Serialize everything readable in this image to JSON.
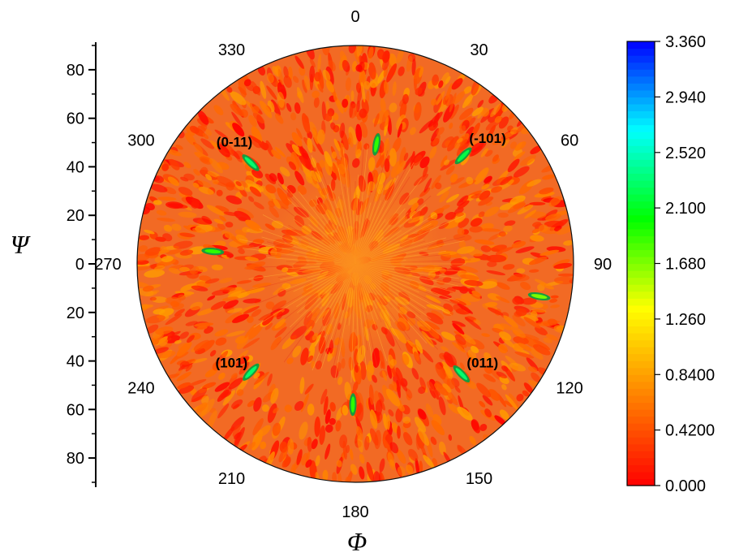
{
  "chart_data": {
    "type": "heatmap",
    "subtype": "polar pole figure",
    "title": "",
    "angular_axis": {
      "label": "Φ",
      "ticks": [
        0,
        30,
        60,
        90,
        120,
        150,
        180,
        210,
        240,
        270,
        300,
        330
      ],
      "tick_labels": [
        "0",
        "30",
        "60",
        "90",
        "120",
        "150",
        "180",
        "210",
        "240",
        "270",
        "300",
        "330"
      ],
      "direction": "clockwise",
      "zero_at": "top"
    },
    "radial_axis": {
      "label": "Ψ",
      "range": [
        0,
        90
      ],
      "tick_labels": [
        "80",
        "60",
        "40",
        "20",
        "0",
        "20",
        "40",
        "60",
        "80"
      ],
      "tick_values": [
        80,
        60,
        40,
        20,
        0,
        20,
        40,
        60,
        80
      ],
      "minor_ticks": true
    },
    "colorbar": {
      "range": [
        0,
        3.36
      ],
      "tick_labels": [
        "3.360",
        "2.940",
        "2.520",
        "2.100",
        "1.680",
        "1.260",
        "0.8400",
        "0.4200",
        "0.000"
      ],
      "tick_values": [
        3.36,
        2.94,
        2.52,
        2.1,
        1.68,
        1.26,
        0.84,
        0.42,
        0.0
      ],
      "colormap": [
        "#ff0000",
        "#ff8000",
        "#ffff00",
        "#00ff00",
        "#00ffff",
        "#0000ff"
      ]
    },
    "background": {
      "typical_intensity_range": [
        0.0,
        0.84
      ]
    },
    "peaks": [
      {
        "phi": 10,
        "psi": 50,
        "intensity": 1.9,
        "label": ""
      },
      {
        "phi": 45,
        "psi": 63,
        "intensity": 2.2,
        "label": "(-101)"
      },
      {
        "phi": 100,
        "psi": 77,
        "intensity": 1.7,
        "label": ""
      },
      {
        "phi": 136,
        "psi": 63,
        "intensity": 2.3,
        "label": "(011)"
      },
      {
        "phi": 181,
        "psi": 58,
        "intensity": 1.9,
        "label": ""
      },
      {
        "phi": 224,
        "psi": 62,
        "intensity": 2.3,
        "label": "(101)"
      },
      {
        "phi": 275,
        "psi": 59,
        "intensity": 1.9,
        "label": ""
      },
      {
        "phi": 314,
        "psi": 60,
        "intensity": 2.3,
        "label": "(0-11)"
      }
    ]
  },
  "colors": {
    "background": "#ffffff",
    "axis": "#000000"
  }
}
